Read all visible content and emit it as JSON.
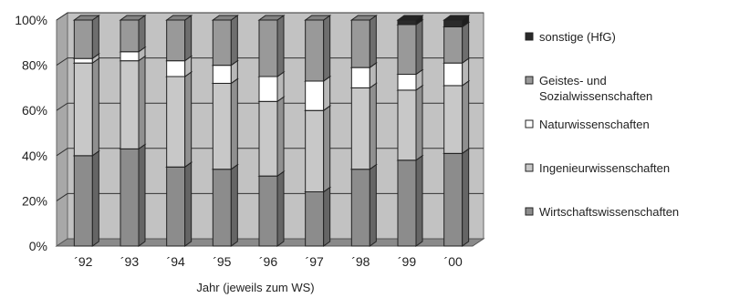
{
  "chart_data": {
    "type": "bar",
    "stacked": true,
    "three_d": true,
    "title": "",
    "xlabel": "Jahr (jeweils zum WS)",
    "ylabel": "",
    "ylim": [
      0,
      100
    ],
    "y_tick_labels": [
      "0%",
      "20%",
      "40%",
      "60%",
      "80%",
      "100%"
    ],
    "grid": true,
    "legend_position": "right",
    "categories": [
      "´92",
      "´93",
      "´94",
      "´95",
      "´96",
      "´97",
      "´98",
      "´99",
      "´00"
    ],
    "series": [
      {
        "name": "Wirtschaftswissenschaften",
        "color": "#8c8c8c",
        "values": [
          40,
          43,
          35,
          34,
          31,
          24,
          34,
          38,
          41
        ]
      },
      {
        "name": "Ingenieurwissenschaften",
        "color": "#c8c8c8",
        "values": [
          41,
          39,
          40,
          38,
          33,
          36,
          36,
          31,
          30
        ]
      },
      {
        "name": "Naturwissenschaften",
        "color": "#ffffff",
        "values": [
          2,
          4,
          7,
          8,
          11,
          13,
          9,
          7,
          10
        ]
      },
      {
        "name": "Geistes- und Sozialwissenschaften",
        "color": "#999999",
        "values": [
          17,
          14,
          18,
          20,
          25,
          27,
          21,
          22,
          16
        ]
      },
      {
        "name": "sonstige (HfG)",
        "color": "#2a2a2a",
        "values": [
          0,
          0,
          0,
          0,
          0,
          0,
          0,
          2,
          3
        ]
      }
    ],
    "legend": [
      {
        "label": "sonstige (HfG)",
        "color": "#2a2a2a"
      },
      {
        "label": "Geistes- und Sozialwissenschaften",
        "lines": [
          "Geistes- und",
          "Sozialwissenschaften"
        ],
        "color": "#999999"
      },
      {
        "label": "Naturwissenschaften",
        "color": "#ffffff"
      },
      {
        "label": "Ingenieurwissenschaften",
        "color": "#c8c8c8"
      },
      {
        "label": "Wirtschaftswissenschaften",
        "color": "#8c8c8c"
      }
    ],
    "colors": {
      "plot_wall": "#c2c2c2",
      "floor": "#8a8a8a",
      "grid": "#333333"
    }
  }
}
